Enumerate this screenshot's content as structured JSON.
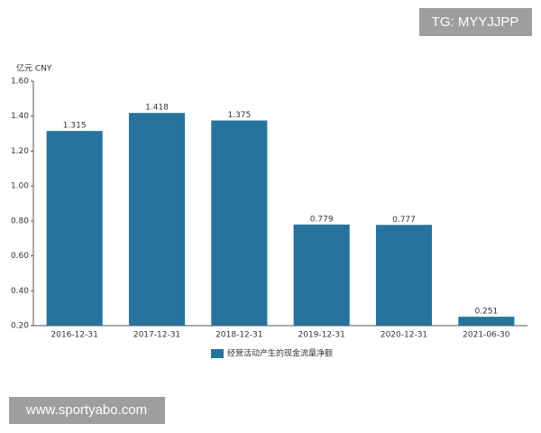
{
  "watermarks": [
    "TG: MYYJJPP",
    "www.sportyabo.com"
  ],
  "chart_data": {
    "type": "bar",
    "y_label": "亿元 CNY",
    "categories": [
      "2016-12-31",
      "2017-12-31",
      "2018-12-31",
      "2019-12-31",
      "2020-12-31",
      "2021-06-30"
    ],
    "series": [
      {
        "name": "经营活动产生的现金流量净额",
        "color": "#26739e",
        "values": [
          1.315,
          1.418,
          1.375,
          0.779,
          0.777,
          0.251
        ]
      }
    ],
    "ylim": [
      0.2,
      1.6
    ],
    "yticks": [
      {
        "value": 0.2,
        "label": "0.20"
      },
      {
        "value": 0.4,
        "label": "0.40"
      },
      {
        "value": 0.6,
        "label": "0.60"
      },
      {
        "value": 0.8,
        "label": "0.80"
      },
      {
        "value": 1.0,
        "label": "1.00"
      },
      {
        "value": 1.2,
        "label": "1.20"
      },
      {
        "value": 1.4,
        "label": "1.40"
      },
      {
        "value": 1.6,
        "label": "1.60"
      }
    ],
    "grid": false
  }
}
